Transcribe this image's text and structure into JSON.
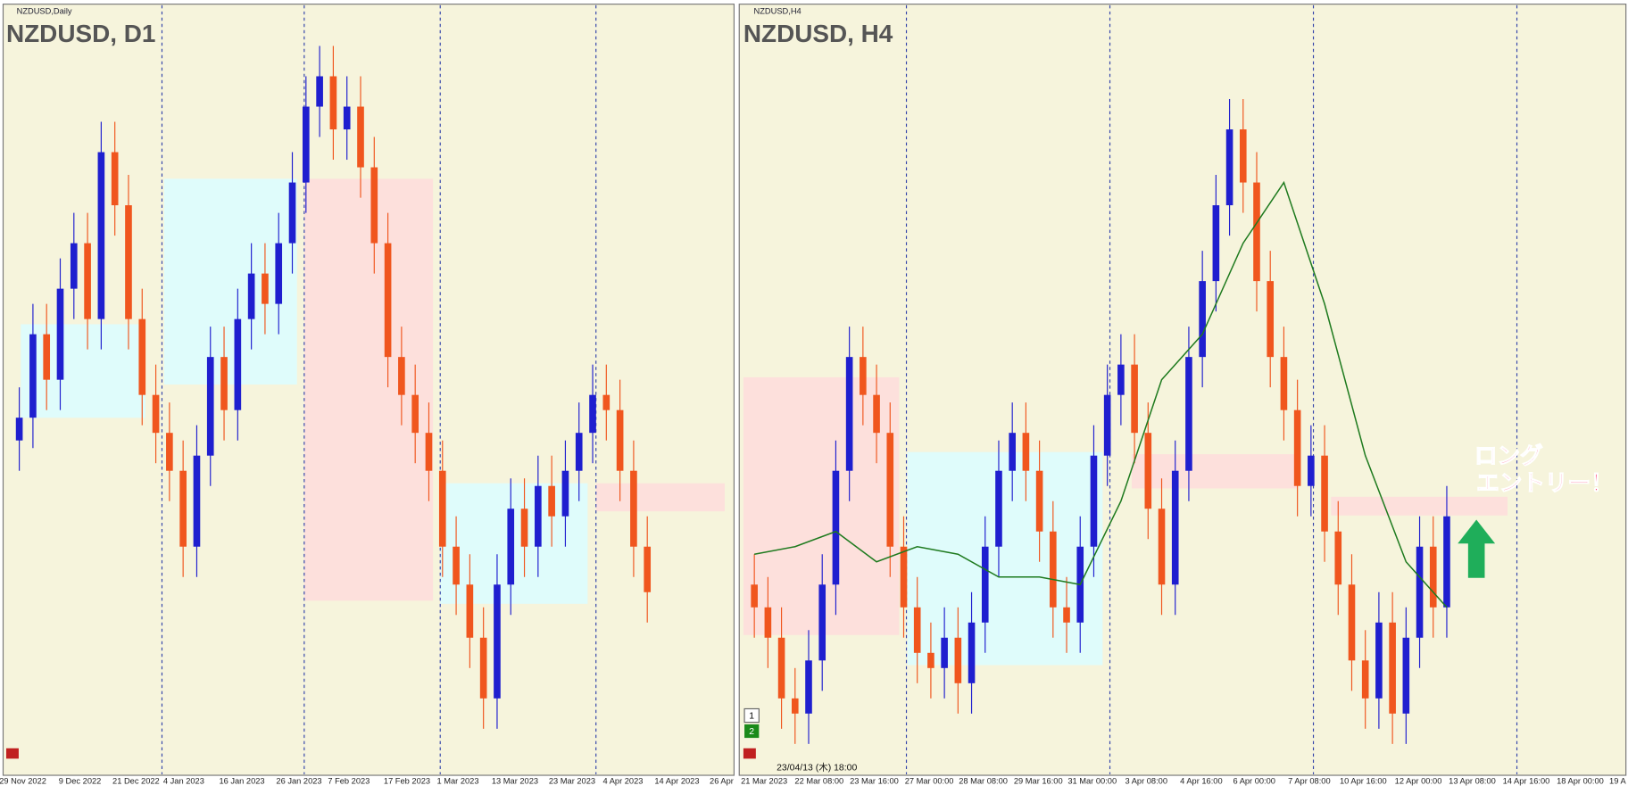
{
  "chart_data": [
    {
      "type": "candlestick",
      "window_label": "NZDUSD,Daily",
      "title": "NZDUSD, D1",
      "x_labels": [
        "29 Nov 2022",
        "9 Dec 2022",
        "21 Dec 2022",
        "4 Jan 2023",
        "16 Jan 2023",
        "26 Jan 2023",
        "7 Feb 2023",
        "17 Feb 2023",
        "1 Mar 2023",
        "13 Mar 2023",
        "23 Mar 2023",
        "4 Apr 2023",
        "14 Apr 2023",
        "26 Apr"
      ],
      "ylim": [
        0,
        100
      ],
      "up_color": "#1f1fcf",
      "down_color": "#f0561e",
      "open": [
        44,
        47,
        58,
        52,
        64,
        70,
        60,
        82,
        75,
        60,
        50,
        45,
        40,
        30,
        42,
        55,
        48,
        60,
        66,
        62,
        70,
        78,
        88,
        92,
        85,
        88,
        80,
        70,
        55,
        50,
        45,
        40,
        30,
        25,
        18,
        10,
        25,
        35,
        30,
        38,
        34,
        40,
        45,
        50,
        48,
        40,
        30
      ],
      "high": [
        51,
        62,
        62,
        68,
        74,
        74,
        86,
        86,
        79,
        64,
        54,
        49,
        44,
        46,
        59,
        59,
        64,
        70,
        70,
        74,
        82,
        92,
        96,
        96,
        92,
        92,
        84,
        74,
        59,
        54,
        49,
        44,
        34,
        29,
        22,
        29,
        39,
        39,
        42,
        42,
        44,
        49,
        54,
        54,
        52,
        44,
        34
      ],
      "low": [
        40,
        43,
        48,
        48,
        60,
        56,
        56,
        71,
        56,
        46,
        41,
        36,
        26,
        26,
        38,
        44,
        44,
        56,
        58,
        58,
        66,
        74,
        84,
        81,
        81,
        76,
        66,
        51,
        46,
        41,
        36,
        26,
        21,
        14,
        6,
        6,
        21,
        26,
        26,
        30,
        30,
        36,
        41,
        44,
        36,
        26,
        20
      ],
      "close": [
        47,
        58,
        52,
        64,
        70,
        60,
        82,
        75,
        60,
        50,
        45,
        40,
        30,
        42,
        55,
        48,
        60,
        66,
        62,
        70,
        78,
        88,
        92,
        85,
        88,
        80,
        70,
        55,
        50,
        45,
        40,
        30,
        25,
        18,
        10,
        25,
        35,
        30,
        38,
        34,
        40,
        45,
        50,
        48,
        40,
        30,
        24
      ]
    },
    {
      "type": "candlestick",
      "window_label": "NZDUSD,H4",
      "title": "NZDUSD, H4",
      "x_labels": [
        "21 Mar 2023",
        "22 Mar 08:00",
        "23 Mar 16:00",
        "27 Mar 00:00",
        "28 Mar 08:00",
        "29 Mar 16:00",
        "31 Mar 00:00",
        "3 Apr 08:00",
        "4 Apr 16:00",
        "6 Apr 00:00",
        "7 Apr 08:00",
        "10 Apr 16:00",
        "12 Apr 00:00",
        "13 Apr 08:00",
        "14 Apr 16:00",
        "18 Apr 00:00",
        "19 A"
      ],
      "ylim": [
        0,
        100
      ],
      "up_color": "#1f1fcf",
      "down_color": "#f0561e",
      "open": [
        25,
        22,
        18,
        10,
        8,
        15,
        25,
        40,
        55,
        50,
        45,
        30,
        22,
        16,
        14,
        18,
        12,
        20,
        30,
        40,
        45,
        40,
        32,
        22,
        20,
        30,
        42,
        50,
        54,
        45,
        35,
        25,
        40,
        55,
        65,
        75,
        85,
        78,
        65,
        55,
        48,
        38,
        42,
        32,
        25,
        15,
        10,
        20,
        8,
        18,
        30,
        22
      ],
      "high": [
        29,
        26,
        22,
        14,
        19,
        29,
        44,
        59,
        59,
        54,
        49,
        34,
        26,
        20,
        22,
        22,
        24,
        34,
        44,
        49,
        49,
        44,
        36,
        26,
        34,
        46,
        54,
        58,
        58,
        49,
        39,
        44,
        59,
        69,
        79,
        89,
        89,
        82,
        69,
        59,
        52,
        46,
        46,
        36,
        29,
        19,
        24,
        24,
        22,
        34,
        34,
        38
      ],
      "low": [
        18,
        14,
        6,
        4,
        4,
        11,
        21,
        36,
        46,
        41,
        26,
        18,
        12,
        10,
        10,
        8,
        8,
        16,
        26,
        36,
        36,
        28,
        18,
        16,
        16,
        26,
        38,
        46,
        41,
        31,
        21,
        21,
        36,
        51,
        61,
        71,
        74,
        61,
        51,
        44,
        34,
        34,
        28,
        21,
        11,
        6,
        6,
        4,
        4,
        14,
        18,
        18
      ],
      "close": [
        22,
        18,
        10,
        8,
        15,
        25,
        40,
        55,
        50,
        45,
        30,
        22,
        16,
        14,
        18,
        12,
        20,
        30,
        40,
        45,
        40,
        32,
        22,
        20,
        30,
        42,
        50,
        54,
        45,
        35,
        25,
        40,
        55,
        65,
        75,
        85,
        78,
        65,
        55,
        48,
        38,
        42,
        32,
        25,
        15,
        10,
        20,
        8,
        18,
        30,
        22,
        34
      ],
      "ma": {
        "color": "#1e7a1e",
        "values": [
          29,
          30,
          32,
          28,
          30,
          29,
          26,
          26,
          25,
          36,
          52,
          58,
          70,
          78,
          62,
          42,
          28,
          22
        ]
      },
      "annotation": "ロング\nエントリー！",
      "time_label": "23/04/13 (木) 18:00",
      "badges": [
        "1",
        "2"
      ]
    }
  ]
}
